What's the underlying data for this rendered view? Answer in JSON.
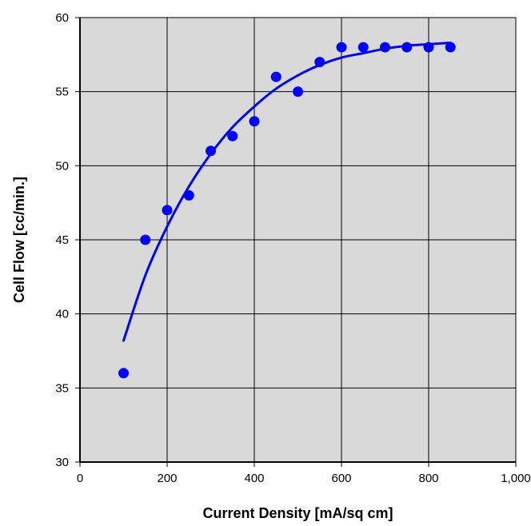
{
  "colors": {
    "plot_background": "#d9d9d9",
    "grid": "#000000",
    "series": "#0000ff"
  },
  "chart_data": {
    "type": "scatter",
    "title": "",
    "xlabel": "Current Density [mA/sq cm]",
    "ylabel": "Cell Flow [cc/min.]",
    "xlim": [
      0,
      1000
    ],
    "ylim": [
      30,
      60
    ],
    "x_ticks": [
      0,
      200,
      400,
      600,
      800,
      1000
    ],
    "x_tick_labels": [
      "0",
      "200",
      "400",
      "600",
      "800",
      "1,000"
    ],
    "y_ticks": [
      30,
      35,
      40,
      45,
      50,
      55,
      60
    ],
    "y_tick_labels": [
      "30",
      "35",
      "40",
      "45",
      "50",
      "55",
      "60"
    ],
    "grid": true,
    "legend": "none",
    "series": [
      {
        "type": "scatter",
        "x": [
          100,
          150,
          200,
          250,
          300,
          350,
          400,
          450,
          500,
          550,
          600,
          650,
          700,
          750,
          800,
          850
        ],
        "y": [
          36,
          45,
          47,
          48,
          51,
          52,
          53,
          56,
          55,
          57,
          58,
          58,
          58,
          58,
          58,
          58
        ]
      },
      {
        "type": "line",
        "x": [
          100,
          150,
          200,
          250,
          300,
          350,
          400,
          450,
          500,
          550,
          600,
          650,
          700,
          750,
          800,
          850
        ],
        "y": [
          38.2,
          42.6,
          45.9,
          48.6,
          50.8,
          52.6,
          54.0,
          55.2,
          56.1,
          56.8,
          57.3,
          57.6,
          57.9,
          58.1,
          58.2,
          58.3
        ]
      }
    ]
  }
}
